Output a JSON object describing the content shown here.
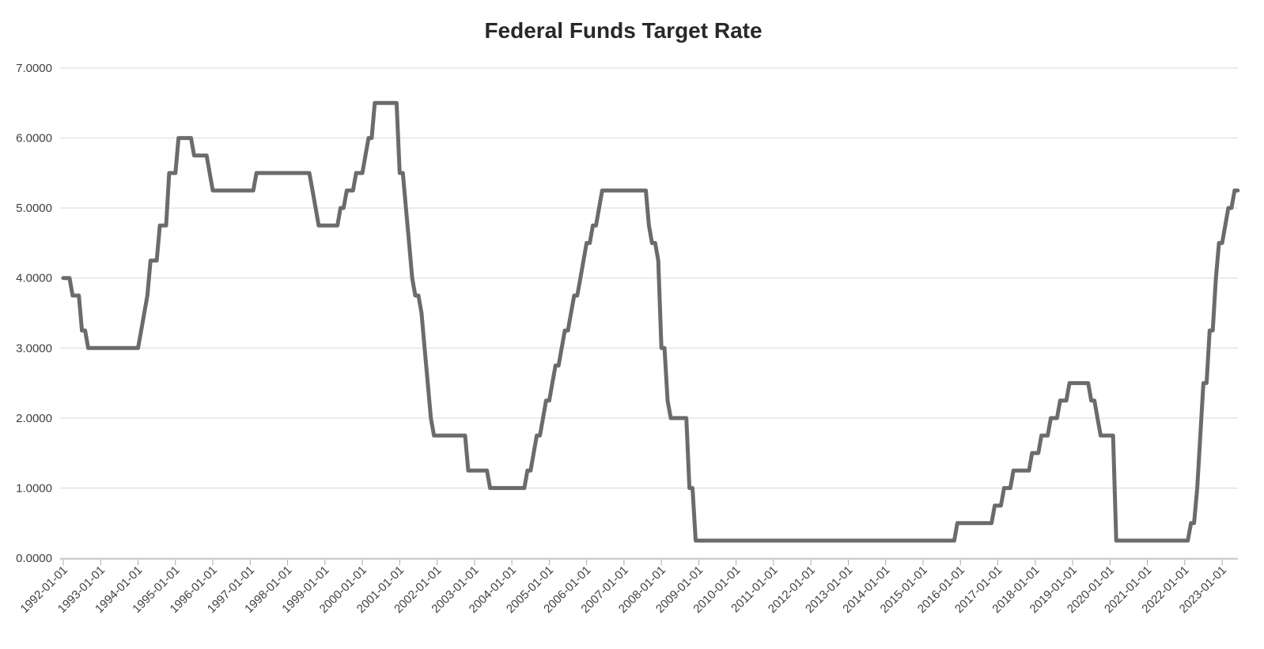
{
  "chart_data": {
    "type": "line",
    "title": "Federal Funds Target Rate",
    "series_name": "Federal Funds Target Rate",
    "x_start": "1992-01",
    "x_interval": "monthly",
    "xlabel": "",
    "ylabel": "",
    "ylim": [
      0,
      7
    ],
    "grid": "horizontal",
    "legend_position": "none",
    "colors": {
      "line": "#6f6a6a",
      "gridline": "#d9d9d9",
      "axis_line": "#cdcdcd",
      "tick": "#ababab",
      "axis_text": "#3f3f3f",
      "title_text": "#282828",
      "background": "#ffffff"
    },
    "y_tick_labels": [
      "0.0000",
      "1.0000",
      "2.0000",
      "3.0000",
      "4.0000",
      "5.0000",
      "6.0000",
      "7.0000"
    ],
    "x_tick_labels": [
      "1992-01-01",
      "1993-01-01",
      "1994-01-01",
      "1995-01-01",
      "1996-01-01",
      "1997-01-01",
      "1998-01-01",
      "1999-01-01",
      "2000-01-01",
      "2001-01-01",
      "2002-01-01",
      "2003-01-01",
      "2004-01-01",
      "2005-01-01",
      "2006-01-01",
      "2007-01-01",
      "2008-01-01",
      "2009-01-01",
      "2010-01-01",
      "2011-01-01",
      "2012-01-01",
      "2013-01-01",
      "2014-01-01",
      "2015-01-01",
      "2016-01-01",
      "2017-01-01",
      "2018-01-01",
      "2019-01-01",
      "2020-01-01",
      "2021-01-01",
      "2022-01-01",
      "2023-01-01"
    ],
    "values": [
      4,
      4,
      4,
      3.75,
      3.75,
      3.75,
      3.25,
      3.25,
      3,
      3,
      3,
      3,
      3,
      3,
      3,
      3,
      3,
      3,
      3,
      3,
      3,
      3,
      3,
      3,
      3,
      3.25,
      3.5,
      3.75,
      4.25,
      4.25,
      4.25,
      4.75,
      4.75,
      4.75,
      5.5,
      5.5,
      5.5,
      6,
      6,
      6,
      6,
      6,
      5.75,
      5.75,
      5.75,
      5.75,
      5.75,
      5.5,
      5.25,
      5.25,
      5.25,
      5.25,
      5.25,
      5.25,
      5.25,
      5.25,
      5.25,
      5.25,
      5.25,
      5.25,
      5.25,
      5.25,
      5.5,
      5.5,
      5.5,
      5.5,
      5.5,
      5.5,
      5.5,
      5.5,
      5.5,
      5.5,
      5.5,
      5.5,
      5.5,
      5.5,
      5.5,
      5.5,
      5.5,
      5.5,
      5.25,
      5,
      4.75,
      4.75,
      4.75,
      4.75,
      4.75,
      4.75,
      4.75,
      5,
      5,
      5.25,
      5.25,
      5.25,
      5.5,
      5.5,
      5.5,
      5.75,
      6,
      6,
      6.5,
      6.5,
      6.5,
      6.5,
      6.5,
      6.5,
      6.5,
      6.5,
      5.5,
      5.5,
      5,
      4.5,
      4,
      3.75,
      3.75,
      3.5,
      3,
      2.5,
      2,
      1.75,
      1.75,
      1.75,
      1.75,
      1.75,
      1.75,
      1.75,
      1.75,
      1.75,
      1.75,
      1.75,
      1.25,
      1.25,
      1.25,
      1.25,
      1.25,
      1.25,
      1.25,
      1,
      1,
      1,
      1,
      1,
      1,
      1,
      1,
      1,
      1,
      1,
      1,
      1.25,
      1.25,
      1.5,
      1.75,
      1.75,
      2,
      2.25,
      2.25,
      2.5,
      2.75,
      2.75,
      3,
      3.25,
      3.25,
      3.5,
      3.75,
      3.75,
      4,
      4.25,
      4.5,
      4.5,
      4.75,
      4.75,
      5,
      5.25,
      5.25,
      5.25,
      5.25,
      5.25,
      5.25,
      5.25,
      5.25,
      5.25,
      5.25,
      5.25,
      5.25,
      5.25,
      5.25,
      5.25,
      4.75,
      4.5,
      4.5,
      4.25,
      3,
      3,
      2.25,
      2,
      2,
      2,
      2,
      2,
      2,
      1,
      1,
      0.25,
      0.25,
      0.25,
      0.25,
      0.25,
      0.25,
      0.25,
      0.25,
      0.25,
      0.25,
      0.25,
      0.25,
      0.25,
      0.25,
      0.25,
      0.25,
      0.25,
      0.25,
      0.25,
      0.25,
      0.25,
      0.25,
      0.25,
      0.25,
      0.25,
      0.25,
      0.25,
      0.25,
      0.25,
      0.25,
      0.25,
      0.25,
      0.25,
      0.25,
      0.25,
      0.25,
      0.25,
      0.25,
      0.25,
      0.25,
      0.25,
      0.25,
      0.25,
      0.25,
      0.25,
      0.25,
      0.25,
      0.25,
      0.25,
      0.25,
      0.25,
      0.25,
      0.25,
      0.25,
      0.25,
      0.25,
      0.25,
      0.25,
      0.25,
      0.25,
      0.25,
      0.25,
      0.25,
      0.25,
      0.25,
      0.25,
      0.25,
      0.25,
      0.25,
      0.25,
      0.25,
      0.25,
      0.25,
      0.25,
      0.25,
      0.25,
      0.25,
      0.25,
      0.25,
      0.25,
      0.25,
      0.25,
      0.25,
      0.25,
      0.5,
      0.5,
      0.5,
      0.5,
      0.5,
      0.5,
      0.5,
      0.5,
      0.5,
      0.5,
      0.5,
      0.5,
      0.75,
      0.75,
      0.75,
      1,
      1,
      1,
      1.25,
      1.25,
      1.25,
      1.25,
      1.25,
      1.25,
      1.5,
      1.5,
      1.5,
      1.75,
      1.75,
      1.75,
      2,
      2,
      2,
      2.25,
      2.25,
      2.25,
      2.5,
      2.5,
      2.5,
      2.5,
      2.5,
      2.5,
      2.5,
      2.25,
      2.25,
      2,
      1.75,
      1.75,
      1.75,
      1.75,
      1.75,
      0.25,
      0.25,
      0.25,
      0.25,
      0.25,
      0.25,
      0.25,
      0.25,
      0.25,
      0.25,
      0.25,
      0.25,
      0.25,
      0.25,
      0.25,
      0.25,
      0.25,
      0.25,
      0.25,
      0.25,
      0.25,
      0.25,
      0.25,
      0.25,
      0.5,
      0.5,
      1,
      1.75,
      2.5,
      2.5,
      3.25,
      3.25,
      4,
      4.5,
      4.5,
      4.75,
      5,
      5,
      5.25,
      5.25
    ]
  }
}
